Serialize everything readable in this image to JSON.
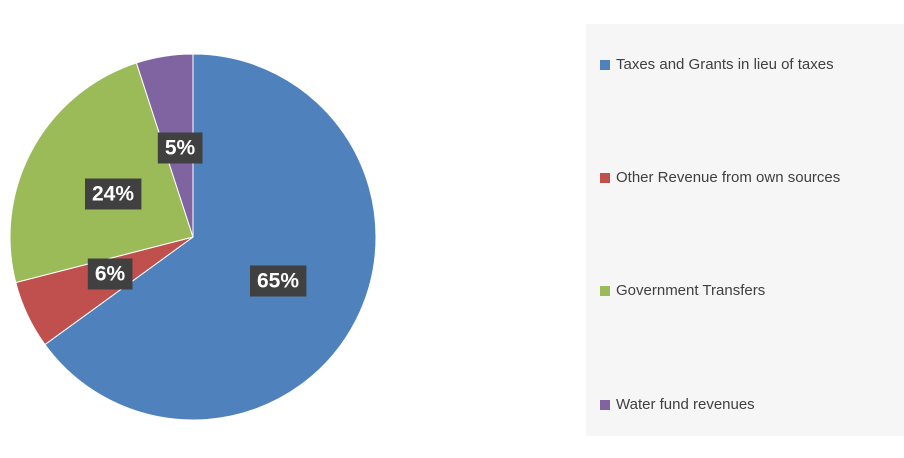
{
  "chart_data": {
    "type": "pie",
    "slices": [
      {
        "label": "Taxes and Grants in lieu of taxes",
        "value": 65,
        "value_label": "65%",
        "color": "#4f81bd"
      },
      {
        "label": "Other Revenue from own sources",
        "value": 6,
        "value_label": "6%",
        "color": "#c0504d"
      },
      {
        "label": "Government Transfers",
        "value": 24,
        "value_label": "24%",
        "color": "#9bbb59"
      },
      {
        "label": "Water fund revenues",
        "value": 5,
        "value_label": "5%",
        "color": "#8064a2"
      }
    ],
    "legend_position": "right",
    "start_angle": "12 o'clock",
    "direction": "clockwise"
  }
}
